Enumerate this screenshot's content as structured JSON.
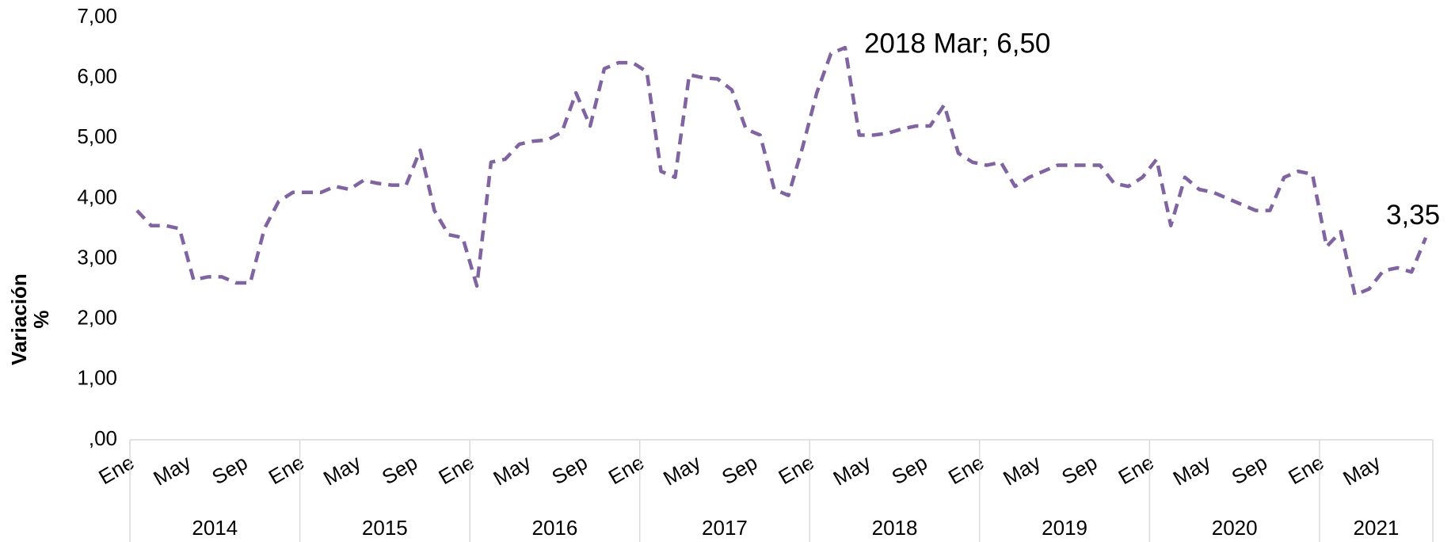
{
  "chart_data": {
    "type": "line",
    "ylabel": [
      "Variación",
      "%"
    ],
    "categories": [
      "Ene",
      null,
      null,
      null,
      "May",
      null,
      null,
      null,
      "Sep",
      null,
      null,
      null,
      "Ene",
      null,
      null,
      null,
      "May",
      null,
      null,
      null,
      "Sep",
      null,
      null,
      null,
      "Ene",
      null,
      null,
      null,
      "May",
      null,
      null,
      null,
      "Sep",
      null,
      null,
      null,
      "Ene",
      null,
      null,
      null,
      "May",
      null,
      null,
      null,
      "Sep",
      null,
      null,
      null,
      "Ene",
      null,
      null,
      null,
      "May",
      null,
      null,
      null,
      "Sep",
      null,
      null,
      null,
      "Ene",
      null,
      null,
      null,
      "May",
      null,
      null,
      null,
      "Sep",
      null,
      null,
      null,
      "Ene",
      null,
      null,
      null,
      "May",
      null,
      null,
      null,
      "Sep",
      null,
      null,
      null,
      "Ene",
      null,
      null,
      null,
      "May",
      null,
      null,
      null
    ],
    "years": [
      "2014",
      "2015",
      "2016",
      "2017",
      "2018",
      "2019",
      "2020",
      "2021"
    ],
    "series": [
      {
        "color": "#8064a2",
        "values": [
          3.8,
          3.55,
          3.55,
          3.5,
          2.65,
          2.7,
          2.7,
          2.6,
          2.6,
          3.5,
          3.95,
          4.1,
          4.1,
          4.1,
          4.2,
          4.15,
          4.3,
          4.25,
          4.22,
          4.22,
          4.8,
          3.8,
          3.4,
          3.35,
          2.55,
          4.6,
          4.65,
          4.9,
          4.95,
          4.97,
          5.1,
          5.75,
          5.2,
          6.15,
          6.25,
          6.25,
          6.1,
          4.45,
          4.35,
          6.05,
          6.0,
          5.98,
          5.8,
          5.15,
          5.05,
          4.15,
          4.05,
          4.85,
          5.75,
          6.4,
          6.5,
          5.05,
          5.05,
          5.08,
          5.15,
          5.2,
          5.2,
          5.55,
          4.75,
          4.6,
          4.55,
          4.6,
          4.2,
          4.35,
          4.45,
          4.55,
          4.55,
          4.55,
          4.55,
          4.25,
          4.2,
          4.35,
          4.65,
          3.55,
          4.35,
          4.15,
          4.1,
          4.0,
          3.9,
          3.8,
          3.8,
          4.35,
          4.45,
          4.4,
          3.2,
          3.45,
          2.4,
          2.5,
          2.8,
          2.85,
          2.78,
          3.35
        ],
        "value_labels": [
          null,
          null,
          null,
          null,
          null,
          null,
          null,
          null,
          null,
          null,
          null,
          null,
          null,
          null,
          null,
          null,
          null,
          null,
          null,
          null,
          null,
          null,
          null,
          null,
          null,
          null,
          null,
          null,
          null,
          null,
          null,
          null,
          null,
          null,
          null,
          null,
          null,
          null,
          null,
          null,
          null,
          null,
          null,
          null,
          null,
          null,
          null,
          null,
          null,
          null,
          "2018 Mar; 6,50",
          null,
          null,
          null,
          null,
          null,
          null,
          null,
          null,
          null,
          null,
          null,
          null,
          null,
          null,
          null,
          null,
          null,
          null,
          null,
          null,
          null,
          null,
          null,
          null,
          null,
          null,
          null,
          null,
          null,
          null,
          null,
          null,
          null,
          null,
          null,
          null,
          null,
          null,
          null,
          null,
          "3,35"
        ]
      }
    ],
    "ylim": [
      0,
      7
    ],
    "yticks": [
      {
        "value": 0,
        "label": ",00"
      },
      {
        "value": 1,
        "label": "1,00"
      },
      {
        "value": 2,
        "label": "2,00"
      },
      {
        "value": 3,
        "label": "3,00"
      },
      {
        "value": 4,
        "label": "4,00"
      },
      {
        "value": 5,
        "label": "5,00"
      },
      {
        "value": 6,
        "label": "6,00"
      },
      {
        "value": 7,
        "label": "7,00"
      }
    ],
    "dashed": true
  }
}
